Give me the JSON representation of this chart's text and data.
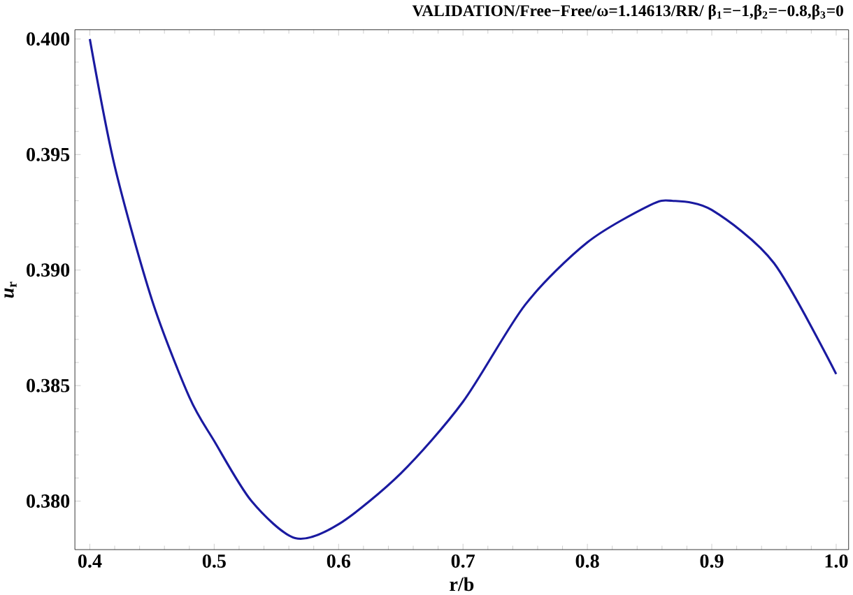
{
  "chart_data": {
    "type": "line",
    "title": "VALIDATION/Free−Free/ω=1.14613/RR/ β$_{1}$=−1,β$_{2}$=−0.8,β$_{3}$=0",
    "xlabel": "r/b",
    "ylabel": "*u*$_{r}$",
    "x": [
      0.4,
      0.42,
      0.45,
      0.48,
      0.5,
      0.53,
      0.565,
      0.6,
      0.65,
      0.7,
      0.75,
      0.8,
      0.85,
      0.868,
      0.9,
      0.95,
      1.0
    ],
    "series": [
      {
        "color": "#1a1aa0",
        "values": [
          0.4,
          0.3945,
          0.3887,
          0.3845,
          0.3826,
          0.38,
          0.3784,
          0.379,
          0.3812,
          0.3843,
          0.3885,
          0.3912,
          0.3928,
          0.393,
          0.3926,
          0.3903,
          0.3855
        ]
      }
    ],
    "xlim": [
      0.388,
      1.01
    ],
    "ylim": [
      0.3779,
      0.4004
    ],
    "xticks": [
      0.4,
      0.5,
      0.6,
      0.7,
      0.8,
      0.9,
      {
        "value": 1.0,
        "label": "1.0"
      }
    ],
    "yticks": [
      {
        "value": 0.38,
        "label": "0.380"
      },
      {
        "value": 0.385,
        "label": "0.385"
      },
      {
        "value": 0.39,
        "label": "0.390"
      },
      {
        "value": 0.395,
        "label": "0.395"
      },
      {
        "value": 0.4,
        "label": "0.400"
      }
    ],
    "grid": false,
    "marker": "none",
    "line_style": "solid"
  }
}
